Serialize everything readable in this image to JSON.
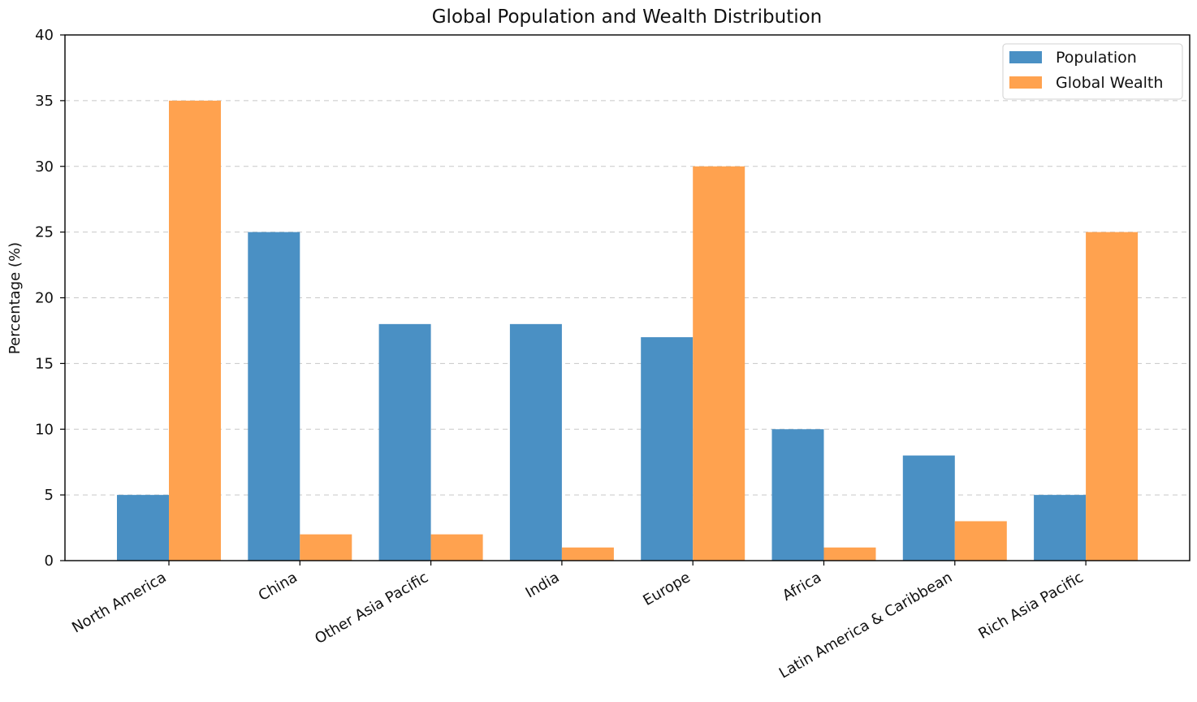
{
  "chart_data": {
    "type": "bar",
    "title": "Global Population and Wealth Distribution",
    "xlabel": "",
    "ylabel": "Percentage (%)",
    "ylim": [
      0,
      40
    ],
    "yticks": [
      "0",
      "5",
      "10",
      "15",
      "20",
      "25",
      "30",
      "35",
      "40"
    ],
    "grid": "y dashed",
    "legend_position": "top-right",
    "categories": [
      "North America",
      "China",
      "Other Asia Pacific",
      "India",
      "Europe",
      "Africa",
      "Latin America & Caribbean",
      "Rich Asia Pacific"
    ],
    "series": [
      {
        "name": "Population",
        "color": "#4a90c4",
        "values": [
          5,
          25,
          18,
          18,
          17,
          10,
          8,
          5
        ]
      },
      {
        "name": "Global Wealth",
        "color": "#ffa24f",
        "values": [
          35,
          2,
          2,
          1,
          30,
          1,
          3,
          25
        ]
      }
    ]
  }
}
